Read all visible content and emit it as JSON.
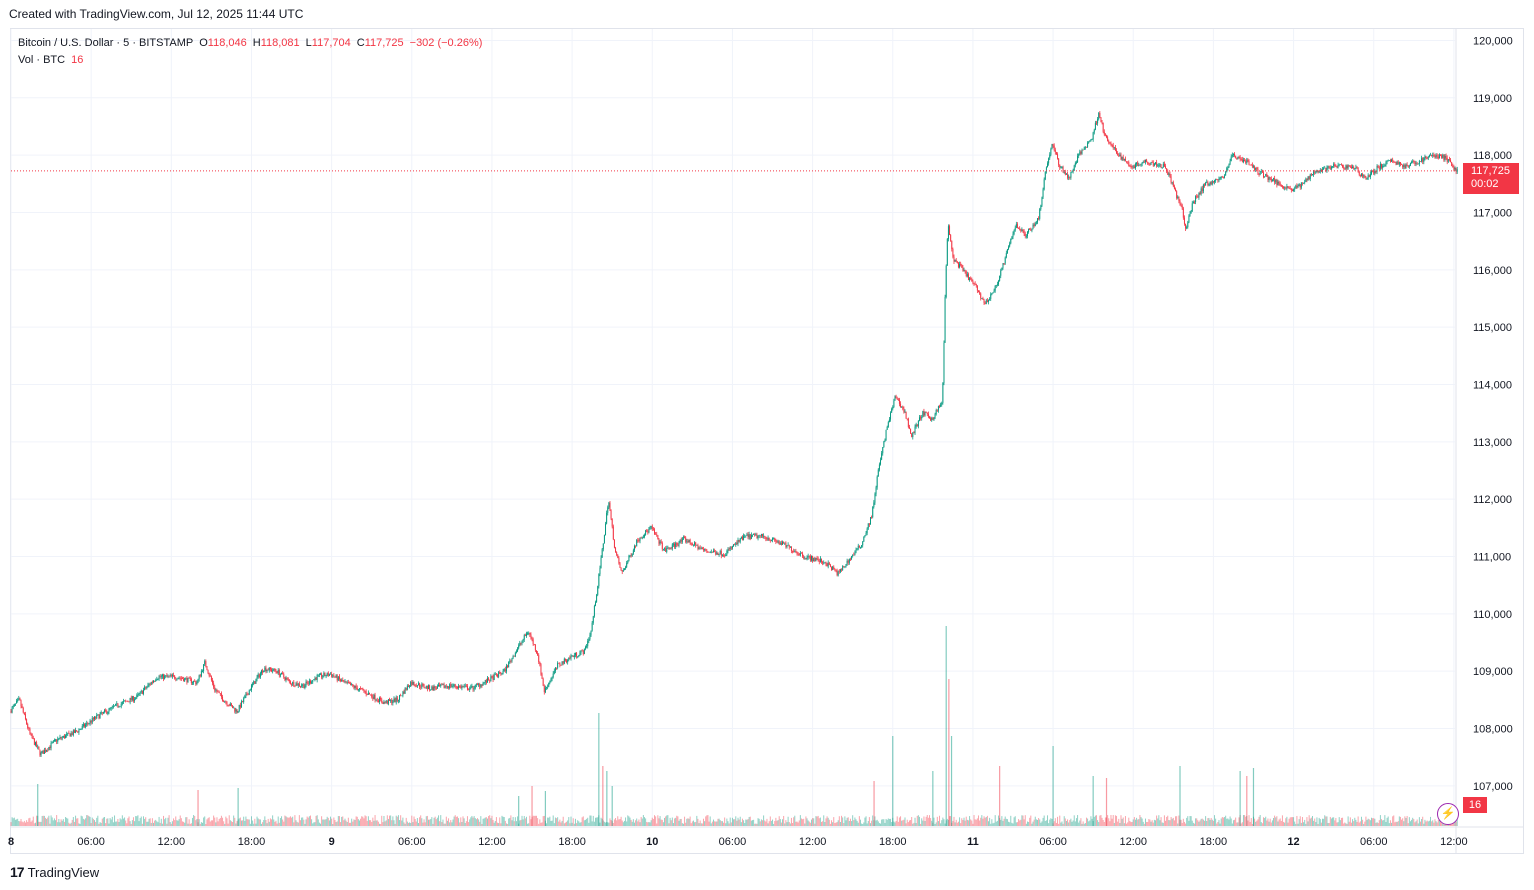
{
  "header": {
    "credit": "Created with TradingView.com, Jul 12, 2025 11:44 UTC"
  },
  "legend": {
    "symbol": "Bitcoin / U.S. Dollar · 5 · BITSTAMP",
    "open_label": "O",
    "open": "118,046",
    "high_label": "H",
    "high": "118,081",
    "low_label": "L",
    "low": "117,704",
    "close_label": "C",
    "close": "117,725",
    "change": "−302 (−0.26%)",
    "vol_label": "Vol · BTC",
    "vol_value": "16"
  },
  "price_tag": {
    "price": "117,725",
    "countdown": "00:02"
  },
  "vol_tag": "16",
  "footer": {
    "logo_text": "TradingView",
    "logo_mark": "17"
  },
  "colors": {
    "up": "#089981",
    "down": "#f23645",
    "grid": "#f0f3fa",
    "axis_text": "#131722"
  },
  "chart_data": {
    "type": "candlestick",
    "title": "Bitcoin / U.S. Dollar · 5 · BITSTAMP",
    "interval": "5",
    "ylim": [
      106300,
      120200
    ],
    "y_ticks": [
      "120,000",
      "119,000",
      "118,000",
      "117,000",
      "116,000",
      "115,000",
      "114,000",
      "113,000",
      "112,000",
      "111,000",
      "110,000",
      "109,000",
      "108,000",
      "107,000"
    ],
    "y_tick_values": [
      120000,
      119000,
      118000,
      117000,
      116000,
      115000,
      114000,
      113000,
      112000,
      111000,
      110000,
      109000,
      108000,
      107000
    ],
    "x_ticks": [
      {
        "label": "8",
        "hour": 0
      },
      {
        "label": "06:00",
        "hour": 6
      },
      {
        "label": "12:00",
        "hour": 12
      },
      {
        "label": "18:00",
        "hour": 18
      },
      {
        "label": "9",
        "hour": 24
      },
      {
        "label": "06:00",
        "hour": 30
      },
      {
        "label": "12:00",
        "hour": 36
      },
      {
        "label": "18:00",
        "hour": 42
      },
      {
        "label": "10",
        "hour": 48
      },
      {
        "label": "06:00",
        "hour": 54
      },
      {
        "label": "12:00",
        "hour": 60
      },
      {
        "label": "18:00",
        "hour": 66
      },
      {
        "label": "11",
        "hour": 72
      },
      {
        "label": "06:00",
        "hour": 78
      },
      {
        "label": "12:00",
        "hour": 84
      },
      {
        "label": "18:00",
        "hour": 90
      },
      {
        "label": "12",
        "hour": 96
      },
      {
        "label": "06:00",
        "hour": 102
      },
      {
        "label": "12:00",
        "hour": 108
      }
    ],
    "price_path": [
      [
        0,
        108300
      ],
      [
        0.7,
        108500
      ],
      [
        1.5,
        107900
      ],
      [
        2.3,
        107550
      ],
      [
        3.5,
        107800
      ],
      [
        5,
        107950
      ],
      [
        6.5,
        108200
      ],
      [
        8,
        108400
      ],
      [
        9.5,
        108550
      ],
      [
        11,
        108900
      ],
      [
        12.5,
        108900
      ],
      [
        14,
        108800
      ],
      [
        14.6,
        109150
      ],
      [
        15.3,
        108700
      ],
      [
        16,
        108500
      ],
      [
        17,
        108300
      ],
      [
        18,
        108700
      ],
      [
        19,
        109050
      ],
      [
        20,
        109000
      ],
      [
        21,
        108800
      ],
      [
        22,
        108750
      ],
      [
        23,
        108900
      ],
      [
        24,
        108950
      ],
      [
        25,
        108800
      ],
      [
        26.5,
        108650
      ],
      [
        28,
        108450
      ],
      [
        29,
        108500
      ],
      [
        30,
        108800
      ],
      [
        31.5,
        108700
      ],
      [
        33,
        108750
      ],
      [
        34.5,
        108700
      ],
      [
        35.5,
        108800
      ],
      [
        37,
        109000
      ],
      [
        38,
        109400
      ],
      [
        38.8,
        109700
      ],
      [
        39.5,
        109300
      ],
      [
        40,
        108650
      ],
      [
        41,
        109100
      ],
      [
        42,
        109250
      ],
      [
        43,
        109350
      ],
      [
        43.5,
        109700
      ],
      [
        44,
        110500
      ],
      [
        44.5,
        111400
      ],
      [
        44.8,
        112000
      ],
      [
        45.3,
        111100
      ],
      [
        45.8,
        110700
      ],
      [
        47,
        111300
      ],
      [
        48,
        111500
      ],
      [
        49,
        111100
      ],
      [
        50.5,
        111300
      ],
      [
        52,
        111100
      ],
      [
        53.5,
        111050
      ],
      [
        55,
        111350
      ],
      [
        56.5,
        111350
      ],
      [
        58,
        111200
      ],
      [
        59.5,
        111000
      ],
      [
        61,
        110900
      ],
      [
        62,
        110700
      ],
      [
        63,
        111000
      ],
      [
        63.7,
        111200
      ],
      [
        64.5,
        111700
      ],
      [
        65,
        112500
      ],
      [
        65.7,
        113300
      ],
      [
        66.3,
        113800
      ],
      [
        67,
        113500
      ],
      [
        67.5,
        113100
      ],
      [
        68.3,
        113500
      ],
      [
        69,
        113400
      ],
      [
        69.8,
        113700
      ],
      [
        70,
        115500
      ],
      [
        70.2,
        116800
      ],
      [
        70.6,
        116200
      ],
      [
        71.3,
        116000
      ],
      [
        72.3,
        115700
      ],
      [
        73,
        115400
      ],
      [
        73.8,
        115700
      ],
      [
        74.5,
        116200
      ],
      [
        75.3,
        116800
      ],
      [
        76,
        116600
      ],
      [
        77,
        116900
      ],
      [
        77.5,
        117700
      ],
      [
        78,
        118200
      ],
      [
        78.6,
        117800
      ],
      [
        79.3,
        117600
      ],
      [
        80,
        118000
      ],
      [
        81,
        118300
      ],
      [
        81.5,
        118750
      ],
      [
        82,
        118300
      ],
      [
        83,
        118000
      ],
      [
        84,
        117800
      ],
      [
        85,
        117900
      ],
      [
        86.5,
        117800
      ],
      [
        87,
        117500
      ],
      [
        87.8,
        117000
      ],
      [
        88,
        116700
      ],
      [
        88.6,
        117200
      ],
      [
        89.5,
        117500
      ],
      [
        90.8,
        117600
      ],
      [
        91.5,
        118000
      ],
      [
        92.5,
        117900
      ],
      [
        93.5,
        117700
      ],
      [
        95,
        117500
      ],
      [
        96,
        117400
      ],
      [
        96.8,
        117500
      ],
      [
        97.5,
        117700
      ],
      [
        99,
        117800
      ],
      [
        100.5,
        117800
      ],
      [
        101.5,
        117600
      ],
      [
        102.5,
        117800
      ],
      [
        103.5,
        117900
      ],
      [
        104.5,
        117800
      ],
      [
        105.5,
        117900
      ],
      [
        106.5,
        118000
      ],
      [
        107.5,
        117950
      ],
      [
        108.3,
        117725
      ]
    ],
    "volume_spikes": [
      {
        "hour": 2,
        "height": 42
      },
      {
        "hour": 14,
        "height": 36
      },
      {
        "hour": 17,
        "height": 38
      },
      {
        "hour": 38,
        "height": 30
      },
      {
        "hour": 39,
        "height": 40
      },
      {
        "hour": 40,
        "height": 35
      },
      {
        "hour": 44,
        "height": 113
      },
      {
        "hour": 44.3,
        "height": 60
      },
      {
        "hour": 44.6,
        "height": 55
      },
      {
        "hour": 45,
        "height": 40
      },
      {
        "hour": 64.6,
        "height": 45
      },
      {
        "hour": 66,
        "height": 90
      },
      {
        "hour": 70,
        "height": 200
      },
      {
        "hour": 70.2,
        "height": 147
      },
      {
        "hour": 70.4,
        "height": 90
      },
      {
        "hour": 69,
        "height": 55
      },
      {
        "hour": 74,
        "height": 60
      },
      {
        "hour": 78,
        "height": 80
      },
      {
        "hour": 81,
        "height": 50
      },
      {
        "hour": 82,
        "height": 48
      },
      {
        "hour": 87.5,
        "height": 60
      },
      {
        "hour": 92,
        "height": 55
      },
      {
        "hour": 92.5,
        "height": 50
      },
      {
        "hour": 93,
        "height": 58
      }
    ],
    "last_price": 117725
  }
}
